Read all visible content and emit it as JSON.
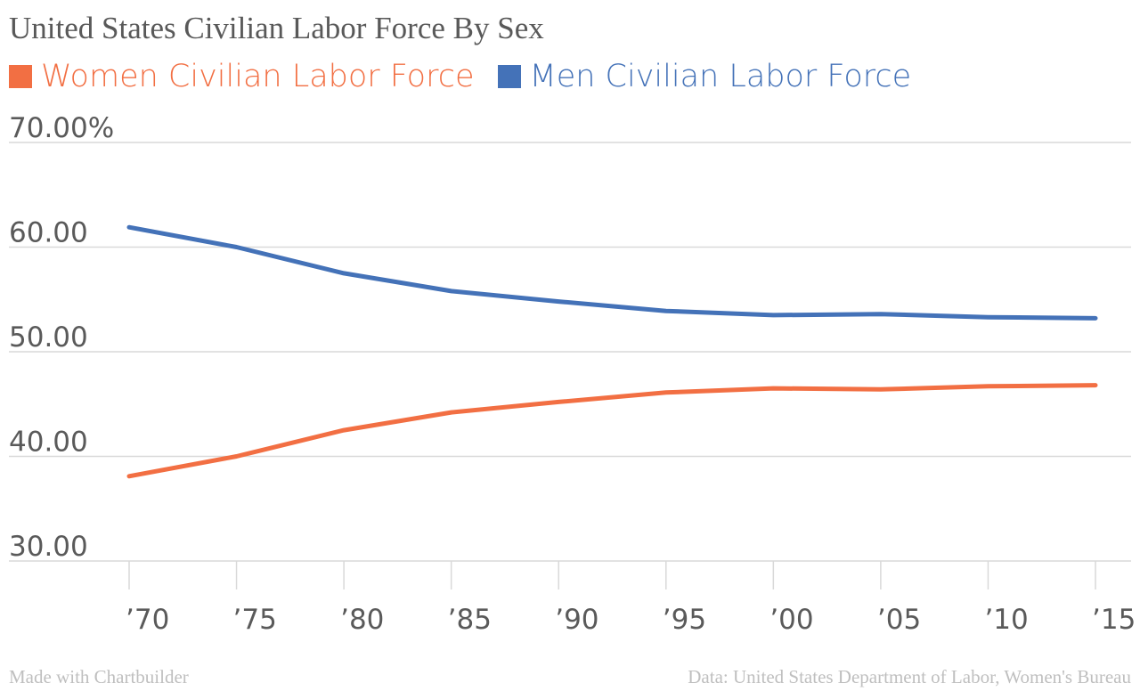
{
  "chart_data": {
    "type": "line",
    "title": "United States Civilian Labor Force By Sex",
    "x": [
      1970,
      1975,
      1980,
      1985,
      1990,
      1995,
      2000,
      2005,
      2010,
      2015
    ],
    "x_tick_labels": [
      "’70",
      "’75",
      "’80",
      "’85",
      "’90",
      "’95",
      "’00",
      "’05",
      "’10",
      "’15"
    ],
    "y_ticks": [
      30,
      40,
      50,
      60,
      70
    ],
    "y_tick_labels": [
      "30.00",
      "40.00",
      "50.00",
      "60.00",
      "70.00%"
    ],
    "ylim": [
      30,
      70
    ],
    "grid": true,
    "legend_position": "top-left",
    "series": [
      {
        "name": "Women Civilian Labor Force",
        "color": "#f26f43",
        "values": [
          38.1,
          40.0,
          42.5,
          44.2,
          45.2,
          46.1,
          46.5,
          46.4,
          46.7,
          46.8
        ]
      },
      {
        "name": "Men Civilian Labor Force",
        "color": "#4472b8",
        "values": [
          61.9,
          60.0,
          57.5,
          55.8,
          54.8,
          53.9,
          53.5,
          53.6,
          53.3,
          53.2
        ]
      }
    ]
  },
  "footer": {
    "made_with": "Made with Chartbuilder",
    "source": "Data: United States Department of Labor, Women's Bureau"
  }
}
